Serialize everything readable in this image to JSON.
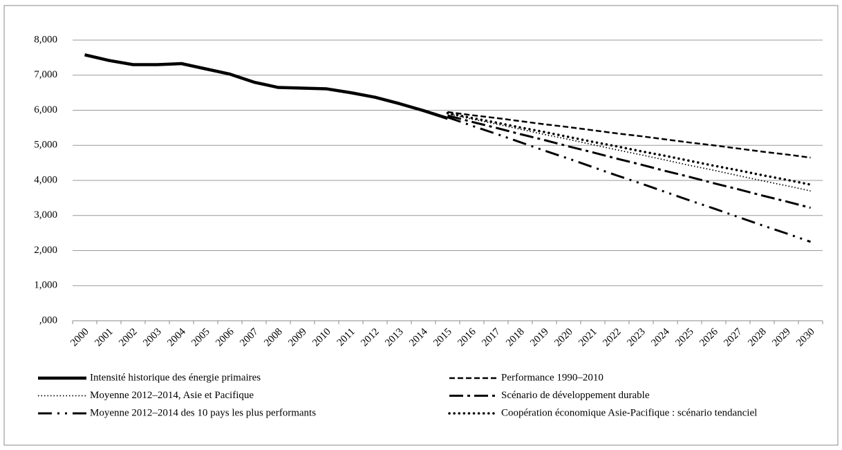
{
  "chart_data": {
    "type": "line",
    "categories": [
      "2000",
      "2001",
      "2002",
      "2003",
      "2004",
      "2005",
      "2006",
      "2007",
      "2008",
      "2009",
      "2010",
      "2011",
      "2012",
      "2013",
      "2014",
      "2015",
      "2016",
      "2017",
      "2018",
      "2019",
      "2020",
      "2021",
      "2022",
      "2023",
      "2024",
      "2025",
      "2026",
      "2027",
      "2028",
      "2029",
      "2030"
    ],
    "ylim": [
      0,
      8
    ],
    "yticks": [
      {
        "value": 0,
        "label": ",000"
      },
      {
        "value": 1,
        "label": "1,000"
      },
      {
        "value": 2,
        "label": "2,000"
      },
      {
        "value": 3,
        "label": "3,000"
      },
      {
        "value": 4,
        "label": "4,000"
      },
      {
        "value": 5,
        "label": "5,000"
      },
      {
        "value": 6,
        "label": "6,000"
      },
      {
        "value": 7,
        "label": "7,000"
      },
      {
        "value": 8,
        "label": "8,000"
      }
    ],
    "grid": true,
    "series": [
      {
        "name": "Intensité historique des énergie primaires",
        "color": "#000000",
        "style": "solid",
        "values": [
          7.58,
          7.42,
          7.3,
          7.3,
          7.33,
          7.18,
          7.03,
          6.8,
          6.65,
          6.63,
          6.61,
          6.5,
          6.37,
          6.19,
          5.99,
          5.77,
          null,
          null,
          null,
          null,
          null,
          null,
          null,
          null,
          null,
          null,
          null,
          null,
          null,
          null,
          null
        ]
      },
      {
        "name": "Performance 1990–2010",
        "color": "#000000",
        "style": "dashed",
        "values": [
          null,
          null,
          null,
          null,
          null,
          null,
          null,
          null,
          null,
          null,
          null,
          null,
          null,
          null,
          null,
          5.95,
          5.86,
          5.78,
          5.69,
          5.6,
          5.52,
          5.43,
          5.34,
          5.26,
          5.17,
          5.08,
          5.0,
          4.91,
          4.82,
          4.74,
          4.65
        ]
      },
      {
        "name": "Moyenne 2012–2014, Asie et Pacifique",
        "color": "#000000",
        "style": "dotted",
        "values": [
          null,
          null,
          null,
          null,
          null,
          null,
          null,
          null,
          null,
          null,
          null,
          null,
          null,
          null,
          null,
          5.9,
          5.75,
          5.61,
          5.46,
          5.31,
          5.17,
          5.02,
          4.87,
          4.73,
          4.58,
          4.43,
          4.29,
          4.14,
          3.99,
          3.85,
          3.7
        ]
      },
      {
        "name": "Scénario de développement durable",
        "color": "#000000",
        "style": "dashdot",
        "values": [
          null,
          null,
          null,
          null,
          null,
          null,
          null,
          null,
          null,
          null,
          null,
          null,
          null,
          null,
          null,
          5.85,
          5.67,
          5.5,
          5.32,
          5.15,
          4.97,
          4.8,
          4.62,
          4.45,
          4.27,
          4.1,
          3.92,
          3.75,
          3.57,
          3.4,
          3.22
        ]
      },
      {
        "name": "Moyenne 2012–2014 des 10 pays les plus performants",
        "color": "#000000",
        "style": "dashdotdot",
        "values": [
          null,
          null,
          null,
          null,
          null,
          null,
          null,
          null,
          null,
          null,
          null,
          null,
          null,
          null,
          null,
          5.8,
          5.56,
          5.33,
          5.09,
          4.85,
          4.62,
          4.38,
          4.14,
          3.91,
          3.67,
          3.43,
          3.2,
          2.96,
          2.72,
          2.49,
          2.25
        ]
      },
      {
        "name": "Coopération économique Asie-Pacifique : scénario tendanciel",
        "color": "#000000",
        "style": "bolddot",
        "values": [
          null,
          null,
          null,
          null,
          null,
          null,
          null,
          null,
          null,
          null,
          null,
          null,
          null,
          null,
          null,
          5.92,
          5.78,
          5.65,
          5.51,
          5.38,
          5.24,
          5.1,
          4.97,
          4.83,
          4.7,
          4.56,
          4.42,
          4.29,
          4.15,
          4.02,
          3.88
        ]
      }
    ]
  }
}
